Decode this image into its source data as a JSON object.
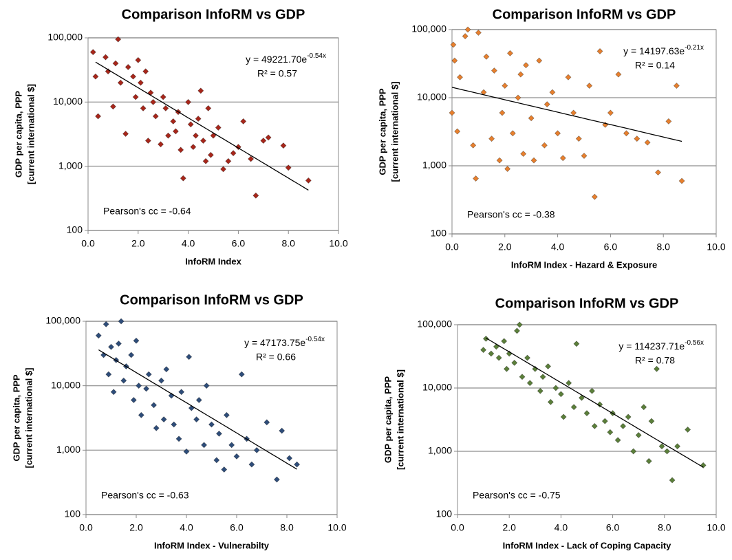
{
  "chart_data": [
    {
      "type": "scatter",
      "title": "Comparison InfoRM vs GDP",
      "xlabel": "InfoRM Index",
      "ylabel": [
        "GDP per capita, PPP",
        "[current international $]"
      ],
      "color": "#a8261a",
      "yscale": "log",
      "grid": true,
      "xlim": [
        0,
        10
      ],
      "xticks": [
        {
          "value": 0,
          "label": "0.0"
        },
        {
          "value": 2,
          "label": "2.0"
        },
        {
          "value": 4,
          "label": "4.0"
        },
        {
          "value": 6,
          "label": "6.0"
        },
        {
          "value": 8,
          "label": "8.0"
        },
        {
          "value": 10,
          "label": "10.0"
        }
      ],
      "ylim": [
        100,
        100000
      ],
      "yticks": [
        100,
        {
          "value": 1000,
          "label": "1,000"
        },
        {
          "value": 10000,
          "label": "10,000"
        },
        {
          "value": 100000,
          "label": "100,000"
        }
      ],
      "x": [
        0.2,
        0.3,
        0.4,
        0.7,
        0.8,
        1.0,
        1.1,
        1.2,
        1.3,
        1.5,
        1.6,
        1.8,
        1.9,
        2.0,
        2.1,
        2.2,
        2.3,
        2.4,
        2.5,
        2.6,
        2.7,
        2.9,
        3.0,
        3.1,
        3.2,
        3.4,
        3.5,
        3.6,
        3.7,
        3.8,
        4.0,
        4.1,
        4.2,
        4.3,
        4.4,
        4.5,
        4.6,
        4.7,
        4.8,
        4.9,
        5.0,
        5.2,
        5.4,
        5.6,
        5.8,
        6.0,
        6.2,
        6.5,
        6.7,
        7.0,
        7.2,
        7.8,
        8.0,
        8.8
      ],
      "values": [
        60000,
        25000,
        6000,
        50000,
        30000,
        8500,
        40000,
        95000,
        20000,
        3200,
        35000,
        25000,
        12000,
        45000,
        20000,
        8000,
        30000,
        2500,
        14000,
        10000,
        6000,
        2200,
        12000,
        8000,
        3000,
        5000,
        3500,
        7000,
        1800,
        650,
        10000,
        4500,
        2000,
        3000,
        5500,
        15000,
        2500,
        1200,
        8000,
        1500,
        3000,
        4000,
        900,
        1200,
        1600,
        2000,
        5000,
        1300,
        350,
        2500,
        2800,
        2100,
        950,
        600
      ],
      "trendline": {
        "coefficient": 49221.7,
        "exponent": -0.54,
        "xlim": [
          0.3,
          8.8
        ]
      },
      "equation": "y = 49221.70e",
      "equation_exponent": "-0.54x",
      "r_squared": "R² = 0.57",
      "pearson": "Pearson's cc = -0.64"
    },
    {
      "type": "scatter",
      "title": "Comparison InfoRM vs GDP",
      "xlabel": "InfoRM Index - Hazard & Exposure",
      "ylabel": [
        "GDP per capita, PPP",
        "[current international $]"
      ],
      "color": "#e8802e",
      "yscale": "log",
      "grid": true,
      "xlim": [
        0,
        10
      ],
      "xticks": [
        {
          "value": 0,
          "label": "0.0"
        },
        {
          "value": 2,
          "label": "2.0"
        },
        {
          "value": 4,
          "label": "4.0"
        },
        {
          "value": 6,
          "label": "6.0"
        },
        {
          "value": 8,
          "label": "8.0"
        },
        {
          "value": 10,
          "label": "10.0"
        }
      ],
      "ylim": [
        100,
        100000
      ],
      "yticks": [
        100,
        {
          "value": 1000,
          "label": "1,000"
        },
        {
          "value": 10000,
          "label": "10,000"
        },
        {
          "value": 100000,
          "label": "100,000"
        }
      ],
      "x": [
        0.0,
        0.05,
        0.1,
        0.2,
        0.3,
        0.5,
        0.6,
        0.8,
        0.9,
        1.0,
        1.2,
        1.3,
        1.5,
        1.6,
        1.8,
        1.9,
        2.0,
        2.1,
        2.2,
        2.3,
        2.5,
        2.6,
        2.7,
        2.8,
        3.0,
        3.1,
        3.3,
        3.5,
        3.6,
        3.8,
        4.0,
        4.2,
        4.4,
        4.6,
        4.8,
        5.0,
        5.2,
        5.4,
        5.6,
        5.8,
        6.0,
        6.3,
        6.6,
        7.0,
        7.4,
        7.8,
        8.2,
        8.5,
        8.7
      ],
      "values": [
        6000,
        60000,
        35000,
        3200,
        20000,
        80000,
        100000,
        2000,
        650,
        90000,
        12000,
        40000,
        2500,
        25000,
        1200,
        6000,
        15000,
        900,
        45000,
        3000,
        10000,
        22000,
        1500,
        30000,
        5000,
        1200,
        35000,
        2000,
        8000,
        12000,
        3000,
        1300,
        20000,
        6000,
        2500,
        1400,
        15000,
        350,
        48000,
        4000,
        6000,
        22000,
        3000,
        2500,
        2200,
        800,
        4500,
        15000,
        600
      ],
      "trendline": {
        "coefficient": 14197.63,
        "exponent": -0.21,
        "xlim": [
          0,
          8.7
        ]
      },
      "equation": "y = 14197.63e",
      "equation_exponent": "-0.21x",
      "r_squared": "R² = 0.14",
      "pearson": "Pearson's cc = -0.38"
    },
    {
      "type": "scatter",
      "title": "Comparison InfoRM vs GDP",
      "xlabel": "InfoRM Index -  Vulnerabilty",
      "ylabel": [
        "GDP per capita, PPP",
        "[current international $]"
      ],
      "color": "#2e4d7a",
      "yscale": "log",
      "grid": true,
      "xlim": [
        0,
        10
      ],
      "xticks": [
        {
          "value": 0,
          "label": "0.0"
        },
        {
          "value": 2,
          "label": "2.0"
        },
        {
          "value": 4,
          "label": "4.0"
        },
        {
          "value": 6,
          "label": "6.0"
        },
        {
          "value": 8,
          "label": "8.0"
        },
        {
          "value": 10,
          "label": "10.0"
        }
      ],
      "ylim": [
        100,
        100000
      ],
      "yticks": [
        100,
        {
          "value": 1000,
          "label": "1,000"
        },
        {
          "value": 10000,
          "label": "10,000"
        },
        {
          "value": 100000,
          "label": "100,000"
        }
      ],
      "x": [
        0.5,
        0.7,
        0.8,
        0.9,
        1.0,
        1.1,
        1.2,
        1.3,
        1.4,
        1.5,
        1.6,
        1.8,
        1.9,
        2.0,
        2.1,
        2.2,
        2.4,
        2.5,
        2.7,
        2.8,
        3.0,
        3.1,
        3.2,
        3.4,
        3.5,
        3.7,
        3.8,
        4.0,
        4.1,
        4.2,
        4.4,
        4.5,
        4.7,
        4.8,
        5.0,
        5.2,
        5.3,
        5.5,
        5.6,
        5.8,
        6.0,
        6.2,
        6.4,
        6.6,
        6.8,
        7.2,
        7.6,
        7.8,
        8.1,
        8.4
      ],
      "values": [
        60000,
        30000,
        90000,
        15000,
        40000,
        8000,
        25000,
        45000,
        100000,
        12000,
        20000,
        30000,
        6000,
        50000,
        10000,
        3500,
        9000,
        15000,
        5000,
        2200,
        12000,
        3000,
        18000,
        7000,
        2500,
        1500,
        8000,
        950,
        28000,
        4500,
        3000,
        6000,
        1200,
        10000,
        2500,
        700,
        1800,
        500,
        3500,
        1200,
        800,
        15000,
        1500,
        600,
        1000,
        2700,
        350,
        2000,
        750,
        600
      ],
      "trendline": {
        "coefficient": 47173.75,
        "exponent": -0.54,
        "xlim": [
          0.5,
          8.4
        ]
      },
      "equation": "y = 47173.75e",
      "equation_exponent": "-0.54x",
      "r_squared": "R² = 0.66",
      "pearson": "Pearson's cc = -0.63"
    },
    {
      "type": "scatter",
      "title": "Comparison InfoRM vs GDP",
      "xlabel": "InfoRM Index -  Lack of Coping Capacity",
      "ylabel": [
        "GDP per capita, PPP",
        "[current international $]"
      ],
      "color": "#5b7f3a",
      "yscale": "log",
      "grid": true,
      "xlim": [
        0,
        10
      ],
      "xticks": [
        {
          "value": 0,
          "label": "0.0"
        },
        {
          "value": 2,
          "label": "2.0"
        },
        {
          "value": 4,
          "label": "4.0"
        },
        {
          "value": 6,
          "label": "6.0"
        },
        {
          "value": 8,
          "label": "8.0"
        },
        {
          "value": 10,
          "label": "10.0"
        }
      ],
      "ylim": [
        100,
        100000
      ],
      "yticks": [
        100,
        {
          "value": 1000,
          "label": "1,000"
        },
        {
          "value": 10000,
          "label": "10,000"
        },
        {
          "value": 100000,
          "label": "100,000"
        }
      ],
      "x": [
        1.0,
        1.1,
        1.3,
        1.5,
        1.6,
        1.8,
        1.9,
        2.0,
        2.2,
        2.3,
        2.4,
        2.5,
        2.7,
        2.8,
        3.0,
        3.2,
        3.3,
        3.5,
        3.6,
        3.8,
        4.0,
        4.1,
        4.3,
        4.5,
        4.6,
        4.8,
        5.0,
        5.2,
        5.3,
        5.5,
        5.7,
        5.9,
        6.0,
        6.2,
        6.4,
        6.6,
        6.8,
        7.0,
        7.2,
        7.4,
        7.5,
        7.7,
        7.9,
        8.1,
        8.3,
        8.5,
        8.9,
        9.5
      ],
      "values": [
        40000,
        60000,
        35000,
        45000,
        30000,
        55000,
        20000,
        35000,
        25000,
        80000,
        100000,
        15000,
        30000,
        12000,
        20000,
        9000,
        15000,
        22000,
        6000,
        10000,
        8000,
        3500,
        12000,
        5000,
        50000,
        7000,
        4000,
        9000,
        2500,
        5500,
        3000,
        2000,
        4000,
        1500,
        2500,
        3500,
        1000,
        1800,
        5000,
        700,
        3000,
        20000,
        1200,
        1000,
        350,
        1200,
        2200,
        600
      ],
      "trendline": {
        "coefficient": 114237.71,
        "exponent": -0.56,
        "xlim": [
          1.1,
          9.5
        ]
      },
      "equation": "y = 114237.71e",
      "equation_exponent": "-0.56x",
      "r_squared": "R² = 0.78",
      "pearson": "Pearson's cc = -0.75"
    }
  ]
}
